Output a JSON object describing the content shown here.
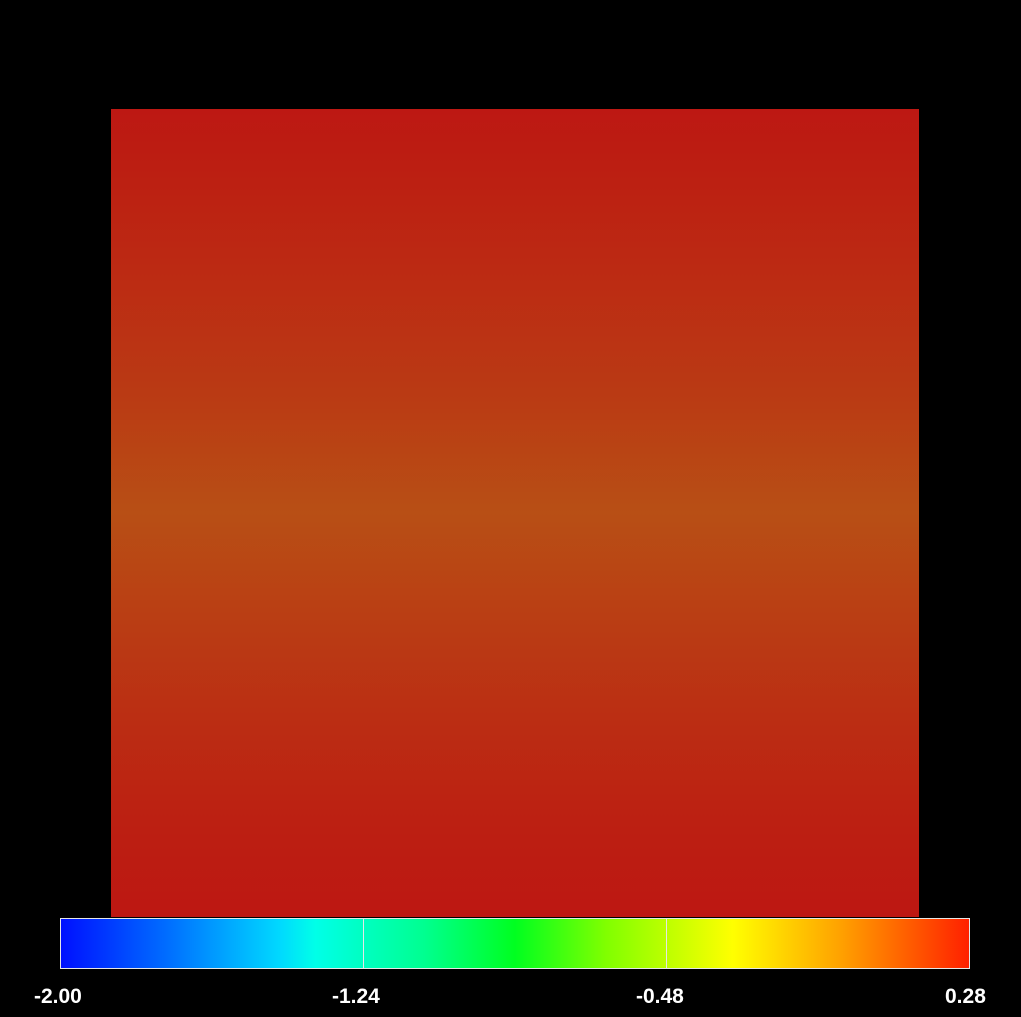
{
  "chart_data": {
    "type": "heatmap",
    "title": "",
    "xlabel": "",
    "ylabel": "",
    "grid": false,
    "colorbar": {
      "orientation": "horizontal",
      "placement": "bottom",
      "range": [
        -2.0,
        0.28
      ],
      "tick_values": [
        -2.0,
        -1.24,
        -0.48,
        0.28
      ],
      "tick_labels": [
        "-2.00",
        "-1.24",
        "-0.48",
        "0.28"
      ],
      "colors": [
        "#0010ff",
        "#00d8ff",
        "#00ff20",
        "#ffff00",
        "#ff2000"
      ]
    },
    "field_profile": {
      "direction": "vertical",
      "note_colors": [
        "#bd1813",
        "#b84f15",
        "#bd1712"
      ],
      "approx_values_top_to_bottom": [
        0.26,
        0.22,
        0.16,
        0.22,
        0.26
      ]
    }
  },
  "colors": {
    "background": "#000000",
    "colorbar_border": "#e6e6e6",
    "label_text": "#ffffff"
  }
}
